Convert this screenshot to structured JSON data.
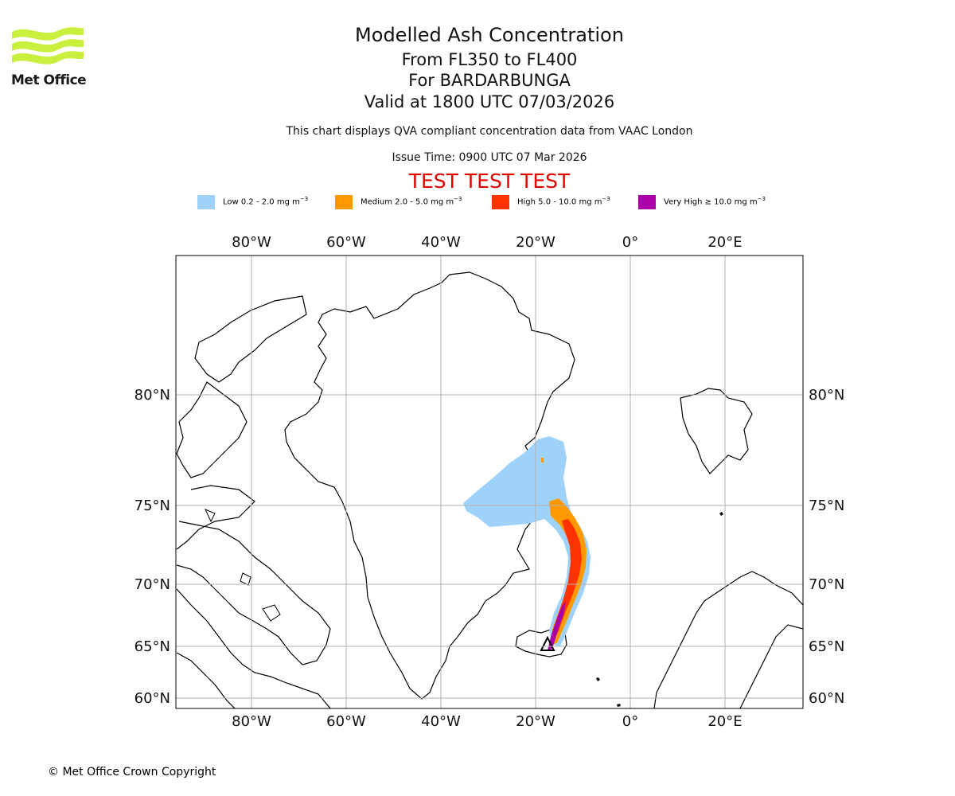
{
  "logo": {
    "text": "Met Office",
    "color": "#c8f03c"
  },
  "title": {
    "line1": "Modelled Ash Concentration",
    "line2": "From FL350 to FL400",
    "line3": "For BARDARBUNGA",
    "line4": "Valid at 1800 UTC 07/03/2026"
  },
  "subtitle": "This chart displays QVA compliant concentration data from VAAC London",
  "issue_time": "Issue Time: 0900 UTC 07 Mar 2026",
  "test_banner": "TEST TEST TEST",
  "test_color": "#e00000",
  "legend": [
    {
      "label": "Low 0.2 - 2.0 mg m",
      "unit_exp": "−3",
      "color": "#9fd2fb"
    },
    {
      "label": "Medium 2.0 - 5.0 mg m",
      "unit_exp": "−3",
      "color": "#ff9900"
    },
    {
      "label": "High 5.0 - 10.0 mg m",
      "unit_exp": "−3",
      "color": "#ff3300"
    },
    {
      "label": "Very High ≥ 10.0 mg m",
      "unit_exp": "−3",
      "color": "#aa00aa"
    }
  ],
  "map": {
    "lon_labels": [
      "80°W",
      "60°W",
      "40°W",
      "20°W",
      "0°",
      "20°E"
    ],
    "lat_labels": [
      "80°N",
      "75°N",
      "70°N",
      "65°N",
      "60°N"
    ],
    "volcano": "BARDARBUNGA"
  },
  "copyright": "© Met Office Crown Copyright"
}
